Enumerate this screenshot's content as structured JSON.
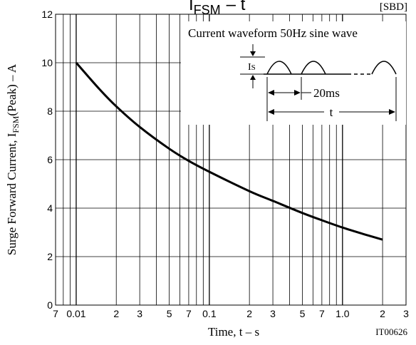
{
  "chart_data": {
    "type": "line",
    "title_main": "I",
    "title_sub": "FSM",
    "title_rest": "– t",
    "corner_tag": "[SBD]",
    "xlabel": "Time, t – s",
    "ylabel_pre": "Surge Forward Current, I",
    "ylabel_sub": "FSM",
    "ylabel_post": "(Peak) – A",
    "figure_id": "IT00626",
    "x_scale": "log",
    "xlim": [
      0.007,
      3.0
    ],
    "ylim": [
      0,
      12
    ],
    "y_ticks": [
      "0",
      "2",
      "4",
      "6",
      "8",
      "10",
      "12"
    ],
    "x_tick_labels": [
      {
        "x": 0.007,
        "label": "7"
      },
      {
        "x": 0.01,
        "label": "0.01"
      },
      {
        "x": 0.02,
        "label": "2"
      },
      {
        "x": 0.03,
        "label": "3"
      },
      {
        "x": 0.05,
        "label": "5"
      },
      {
        "x": 0.07,
        "label": "7"
      },
      {
        "x": 0.1,
        "label": "0.1"
      },
      {
        "x": 0.2,
        "label": "2"
      },
      {
        "x": 0.3,
        "label": "3"
      },
      {
        "x": 0.5,
        "label": "5"
      },
      {
        "x": 0.7,
        "label": "7"
      },
      {
        "x": 1.0,
        "label": "1.0"
      },
      {
        "x": 2.0,
        "label": "2"
      },
      {
        "x": 3.0,
        "label": "3"
      }
    ],
    "grid": true,
    "series": [
      {
        "x": [
          0.01,
          0.015,
          0.02,
          0.03,
          0.05,
          0.07,
          0.1,
          0.2,
          0.3,
          0.5,
          0.7,
          1.0,
          1.5,
          2.0
        ],
        "y": [
          10.0,
          8.9,
          8.2,
          7.35,
          6.45,
          5.95,
          5.5,
          4.7,
          4.3,
          3.8,
          3.5,
          3.2,
          2.9,
          2.7
        ]
      }
    ],
    "inset": {
      "caption": "Current waveform 50Hz sine wave",
      "amplitude_label_pre": "I",
      "amplitude_label_sub": "S",
      "period_label": "20ms",
      "duration_label": "t"
    }
  }
}
